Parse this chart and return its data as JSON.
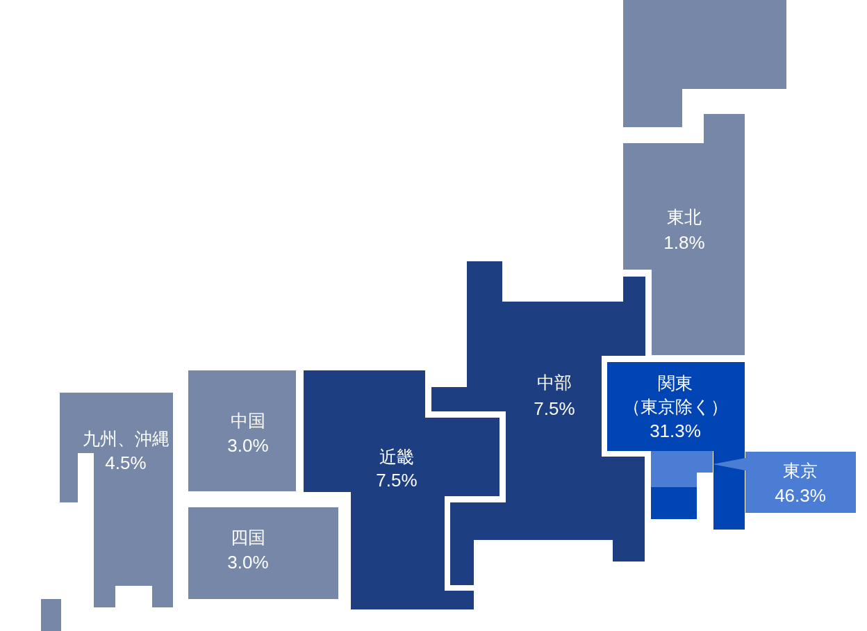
{
  "chart_data": {
    "type": "other",
    "categories": [
      null,
      "東北",
      "関東（東京除く）",
      "東京",
      "中部",
      "近畿",
      "中国",
      "四国",
      "九州、沖縄"
    ],
    "values": [
      null,
      1.8,
      31.3,
      46.3,
      7.5,
      7.5,
      3.0,
      3.0,
      4.5
    ],
    "value_labels": [
      null,
      "1.8%",
      "31.3%",
      "46.3%",
      "7.5%",
      "7.5%",
      "3.0%",
      "3.0%",
      "4.5%"
    ],
    "colors": [
      "#7687a8",
      "#7687a8",
      "#0144b4",
      "#4a7dd3",
      "#1d3f82",
      "#1d3f82",
      "#7687a8",
      "#7687a8",
      "#7687a8"
    ]
  }
}
